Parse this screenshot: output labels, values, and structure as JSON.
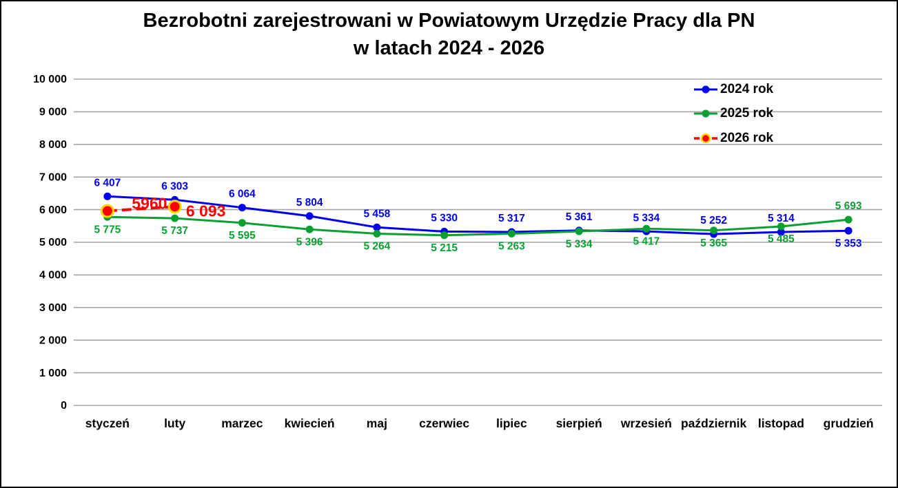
{
  "title": {
    "line1": "Bezrobotni zarejestrowani w Powiatowym Urzędzie Pracy dla PN",
    "line2": "w latach 2024 - 2026"
  },
  "chart_data": {
    "type": "line",
    "title": "Bezrobotni zarejestrowani w Powiatowym Urzędzie Pracy dla PN w latach 2024 - 2026",
    "categories": [
      "styczeń",
      "luty",
      "marzec",
      "kwiecień",
      "maj",
      "czerwiec",
      "lipiec",
      "sierpień",
      "wrzesień",
      "październik",
      "listopad",
      "grudzień"
    ],
    "series": [
      {
        "name": "2024 rok",
        "color": "#0000EE",
        "values": [
          6407,
          6303,
          6064,
          5804,
          5458,
          5330,
          5317,
          5361,
          5334,
          5252,
          5314,
          5353
        ],
        "labels": [
          "6 407",
          "6 303",
          "6 064",
          "5 804",
          "5 458",
          "5 330",
          "5 317",
          "5 361",
          "5 334",
          "5 252",
          "5 314",
          "5 353"
        ],
        "label_pos": [
          "above",
          "above",
          "above",
          "above",
          "above",
          "above",
          "above",
          "above",
          "above",
          "above",
          "above",
          "below"
        ],
        "dashed": false
      },
      {
        "name": "2025 rok",
        "color": "#0AA032",
        "values": [
          5775,
          5737,
          5595,
          5396,
          5264,
          5215,
          5263,
          5334,
          5417,
          5365,
          5485,
          5693
        ],
        "labels": [
          "5 775",
          "5 737",
          "5 595",
          "5 396",
          "5 264",
          "5 215",
          "5 263",
          "5 334",
          "5 417",
          "5 365",
          "5 485",
          "5 693"
        ],
        "label_pos": [
          "below",
          "below",
          "below",
          "below",
          "below",
          "below",
          "below",
          "below",
          "below",
          "below",
          "below",
          "above"
        ],
        "dashed": false
      },
      {
        "name": "2026 rok",
        "color": "#FF0000",
        "marker_ring": "#FFD400",
        "values": [
          5960,
          6093
        ],
        "labels": [
          "5960",
          "6 093"
        ],
        "label_offsets": [
          [
            61,
            -9
          ],
          [
            45,
            8
          ]
        ],
        "label_size": 23,
        "dashed": true
      }
    ],
    "xlabel": "",
    "ylabel": "",
    "ylim": [
      0,
      10000
    ],
    "ytick_step": 1000,
    "ytick_labels": [
      "0",
      "1 000",
      "2 000",
      "3 000",
      "4 000",
      "5 000",
      "6 000",
      "7 000",
      "8 000",
      "9 000",
      "10 000"
    ],
    "grid": true,
    "gridline_color": "#A6A6A6",
    "legend_position": "top-right",
    "legend_entries": [
      "2024 rok",
      "2025 rok",
      "2026 rok"
    ]
  }
}
